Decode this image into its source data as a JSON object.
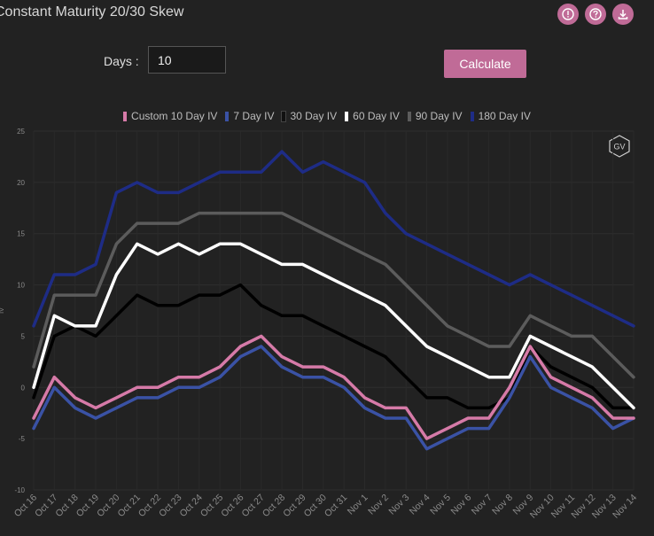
{
  "header": {
    "title": "Constant Maturity 20/30 Skew"
  },
  "icons": [
    "alert-icon",
    "help-icon",
    "download-icon"
  ],
  "controls": {
    "days_label": "Days",
    "days_value": "10",
    "calculate_label": "Calculate"
  },
  "logo": {
    "text": "GV"
  },
  "chart_data": {
    "type": "line",
    "ylabel": "IV",
    "ylim": [
      -10,
      25
    ],
    "yticks": [
      25,
      20,
      15,
      10,
      5,
      0,
      -5,
      -10
    ],
    "x": [
      "Oct 16",
      "Oct 17",
      "Oct 18",
      "Oct 19",
      "Oct 20",
      "Oct 21",
      "Oct 22",
      "Oct 23",
      "Oct 24",
      "Oct 25",
      "Oct 26",
      "Oct 27",
      "Oct 28",
      "Oct 29",
      "Oct 30",
      "Oct 31",
      "Nov 1",
      "Nov 2",
      "Nov 3",
      "Nov 4",
      "Nov 5",
      "Nov 6",
      "Nov 7",
      "Nov 8",
      "Nov 9",
      "Nov 10",
      "Nov 11",
      "Nov 12",
      "Nov 13",
      "Nov 14"
    ],
    "grid": true,
    "legend_position": "top",
    "series": [
      {
        "name": "Custom 10 Day IV",
        "color": "#d67aa8",
        "values": [
          -3,
          1,
          -1,
          -2,
          -1,
          0,
          0,
          1,
          1,
          2,
          4,
          5,
          3,
          2,
          2,
          1,
          -1,
          -2,
          -2,
          -5,
          -4,
          -3,
          -3,
          0,
          4,
          1,
          0,
          -1,
          -3,
          -3
        ]
      },
      {
        "name": "7 Day IV",
        "color": "#3a52a5",
        "values": [
          -4,
          0,
          -2,
          -3,
          -2,
          -1,
          -1,
          0,
          0,
          1,
          3,
          4,
          2,
          1,
          1,
          0,
          -2,
          -3,
          -3,
          -6,
          -5,
          -4,
          -4,
          -1,
          3,
          0,
          -1,
          -2,
          -4,
          -3
        ]
      },
      {
        "name": "30 Day IV",
        "color": "#000000",
        "values": [
          -1,
          5,
          6,
          5,
          7,
          9,
          8,
          8,
          9,
          9,
          10,
          8,
          7,
          7,
          6,
          5,
          4,
          3,
          1,
          -1,
          -1,
          -2,
          -2,
          -1,
          4,
          2,
          1,
          0,
          -2,
          -2
        ]
      },
      {
        "name": "60 Day IV",
        "color": "#ffffff",
        "values": [
          0,
          7,
          6,
          6,
          11,
          14,
          13,
          14,
          13,
          14,
          14,
          13,
          12,
          12,
          11,
          10,
          9,
          8,
          6,
          4,
          3,
          2,
          1,
          1,
          5,
          4,
          3,
          2,
          0,
          -2
        ]
      },
      {
        "name": "90 Day IV",
        "color": "#5c5c5c",
        "values": [
          2,
          9,
          9,
          9,
          14,
          16,
          16,
          16,
          17,
          17,
          17,
          17,
          17,
          16,
          15,
          14,
          13,
          12,
          10,
          8,
          6,
          5,
          4,
          4,
          7,
          6,
          5,
          5,
          3,
          1
        ]
      },
      {
        "name": "180 Day IV",
        "color": "#1e2c86",
        "values": [
          6,
          11,
          11,
          12,
          19,
          20,
          19,
          19,
          20,
          21,
          21,
          21,
          23,
          21,
          22,
          21,
          20,
          17,
          15,
          14,
          13,
          12,
          11,
          10,
          11,
          10,
          9,
          8,
          7,
          6
        ]
      }
    ]
  }
}
